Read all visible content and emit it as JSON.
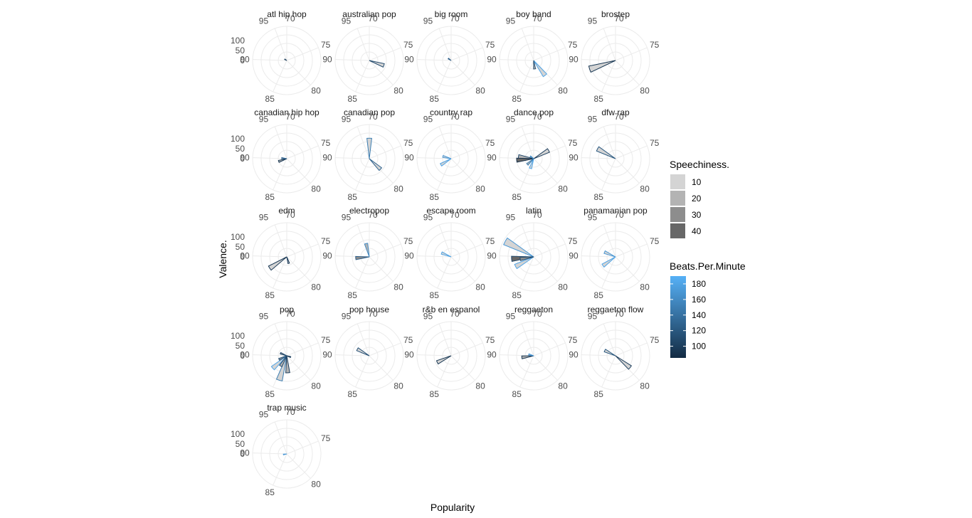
{
  "chart_data": {
    "type": "polar-bar-facets",
    "xlabel": "Popularity",
    "ylabel": "Valence.",
    "x_ticks": [
      "70",
      "75",
      "80",
      "85",
      "90",
      "95"
    ],
    "y_ticks": [
      "0",
      "50",
      "100"
    ],
    "ylim": [
      0,
      100
    ],
    "legend_speechiness": {
      "title": "Speechiness.",
      "entries": [
        "10",
        "20",
        "30",
        "40"
      ],
      "colors": [
        "#d4d4d4",
        "#b3b3b3",
        "#8d8d8d",
        "#676767"
      ]
    },
    "legend_bpm": {
      "title": "Beats.Per.Minute",
      "ticks": [
        100,
        120,
        140,
        160,
        180
      ],
      "range": [
        85,
        190
      ],
      "color_low": "#132b43",
      "color_high": "#56b1f7"
    },
    "facets": [
      {
        "name": "atl hip hop",
        "bars": [
          {
            "popularity": 92.2,
            "valence": 7,
            "bpm": 100,
            "speechiness": 40
          }
        ]
      },
      {
        "name": "australian pop",
        "bars": [
          {
            "popularity": 78,
            "valence": 45,
            "bpm": 110,
            "speechiness": 8
          }
        ]
      },
      {
        "name": "big room",
        "bars": [
          {
            "popularity": 92.4,
            "valence": 10,
            "bpm": 125,
            "speechiness": 10
          }
        ]
      },
      {
        "name": "boy band",
        "bars": [
          {
            "popularity": 80.5,
            "valence": 55,
            "bpm": 180,
            "speechiness": 10
          },
          {
            "popularity": 82.8,
            "valence": 25,
            "bpm": 110,
            "speechiness": 20
          }
        ]
      },
      {
        "name": "brostep",
        "bars": [
          {
            "popularity": 88.5,
            "valence": 80,
            "bpm": 95,
            "speechiness": 10
          }
        ]
      },
      {
        "name": "canadian hip hop",
        "bars": [
          {
            "popularity": 88.5,
            "valence": 25,
            "bpm": 95,
            "speechiness": 20
          },
          {
            "popularity": 90.3,
            "valence": 15,
            "bpm": 130,
            "speechiness": 30
          }
        ]
      },
      {
        "name": "canadian pop",
        "bars": [
          {
            "popularity": 96.5,
            "valence": 60,
            "bpm": 150,
            "speechiness": 10
          },
          {
            "popularity": 79.8,
            "valence": 45,
            "bpm": 130,
            "speechiness": 10
          }
        ]
      },
      {
        "name": "country rap",
        "bars": [
          {
            "popularity": 91,
            "valence": 25,
            "bpm": 170,
            "speechiness": 10
          },
          {
            "popularity": 87.6,
            "valence": 35,
            "bpm": 180,
            "speechiness": 10
          }
        ]
      },
      {
        "name": "dance pop",
        "bars": [
          {
            "popularity": 90.5,
            "valence": 45,
            "bpm": 110,
            "speechiness": 20
          },
          {
            "popularity": 89.5,
            "valence": 50,
            "bpm": 90,
            "speechiness": 40
          },
          {
            "popularity": 74.5,
            "valence": 50,
            "bpm": 100,
            "speechiness": 10
          },
          {
            "popularity": 84.6,
            "valence": 30,
            "bpm": 180,
            "speechiness": 10
          },
          {
            "popularity": 86.8,
            "valence": 25,
            "bpm": 150,
            "speechiness": 20
          },
          {
            "popularity": 92.5,
            "valence": 12,
            "bpm": 160,
            "speechiness": 10
          }
        ]
      },
      {
        "name": "dfw rap",
        "bars": [
          {
            "popularity": 92,
            "valence": 60,
            "bpm": 120,
            "speechiness": 10
          }
        ]
      },
      {
        "name": "edm",
        "bars": [
          {
            "popularity": 87.4,
            "valence": 60,
            "bpm": 95,
            "speechiness": 10
          },
          {
            "popularity": 82,
            "valence": 20,
            "bpm": 100,
            "speechiness": 20
          }
        ]
      },
      {
        "name": "electropop",
        "bars": [
          {
            "popularity": 89.5,
            "valence": 40,
            "bpm": 125,
            "speechiness": 30
          },
          {
            "popularity": 95.5,
            "valence": 40,
            "bpm": 160,
            "speechiness": 20
          }
        ]
      },
      {
        "name": "escape room",
        "bars": [
          {
            "popularity": 91.5,
            "valence": 30,
            "bpm": 180,
            "speechiness": 10
          }
        ]
      },
      {
        "name": "latin",
        "bars": [
          {
            "popularity": 92,
            "valence": 95,
            "bpm": 170,
            "speechiness": 10
          },
          {
            "popularity": 89.5,
            "valence": 65,
            "bpm": 110,
            "speechiness": 40
          },
          {
            "popularity": 87.8,
            "valence": 60,
            "bpm": 180,
            "speechiness": 10
          },
          {
            "popularity": 89.2,
            "valence": 40,
            "bpm": 110,
            "speechiness": 30
          }
        ]
      },
      {
        "name": "panamanian pop",
        "bars": [
          {
            "popularity": 91.6,
            "valence": 35,
            "bpm": 170,
            "speechiness": 10
          },
          {
            "popularity": 87.3,
            "valence": 45,
            "bpm": 180,
            "speechiness": 10
          }
        ]
      },
      {
        "name": "pop",
        "bars": [
          {
            "popularity": 86.8,
            "valence": 55,
            "bpm": 180,
            "speechiness": 10
          },
          {
            "popularity": 84.5,
            "valence": 75,
            "bpm": 150,
            "speechiness": 10
          },
          {
            "popularity": 83,
            "valence": 50,
            "bpm": 100,
            "speechiness": 20
          },
          {
            "popularity": 91.5,
            "valence": 20,
            "bpm": 110,
            "speechiness": 30
          },
          {
            "popularity": 88,
            "valence": 25,
            "bpm": 120,
            "speechiness": 30
          },
          {
            "popularity": 85.5,
            "valence": 35,
            "bpm": 110,
            "speechiness": 20
          },
          {
            "popularity": 78,
            "valence": 12,
            "bpm": 100,
            "speechiness": 10
          }
        ]
      },
      {
        "name": "pop house",
        "bars": [
          {
            "popularity": 92,
            "valence": 40,
            "bpm": 115,
            "speechiness": 10
          }
        ]
      },
      {
        "name": "r&b en espanol",
        "bars": [
          {
            "popularity": 88,
            "valence": 45,
            "bpm": 95,
            "speechiness": 10
          }
        ]
      },
      {
        "name": "reggaeton",
        "bars": [
          {
            "popularity": 89.3,
            "valence": 35,
            "bpm": 95,
            "speechiness": 20
          },
          {
            "popularity": 91,
            "valence": 15,
            "bpm": 170,
            "speechiness": 10
          }
        ]
      },
      {
        "name": "reggaeton flow",
        "bars": [
          {
            "popularity": 91.8,
            "valence": 35,
            "bpm": 120,
            "speechiness": 10
          },
          {
            "popularity": 79.5,
            "valence": 55,
            "bpm": 100,
            "speechiness": 10
          }
        ]
      },
      {
        "name": "trap music",
        "bars": [
          {
            "popularity": 89.2,
            "valence": 10,
            "bpm": 170,
            "speechiness": 10
          }
        ]
      }
    ]
  }
}
